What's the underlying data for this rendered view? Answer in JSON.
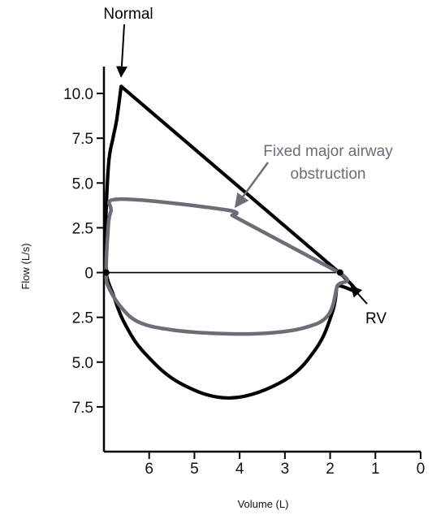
{
  "chart_data": {
    "type": "line",
    "xlabel": "Volume (L)",
    "ylabel": "Flow (L/s)",
    "xlim": [
      7.0,
      0.0
    ],
    "ylim": [
      -10.0,
      11.5
    ],
    "x_reversed": true,
    "x_ticks": [
      6,
      5,
      4,
      3,
      2,
      1,
      0
    ],
    "x_tick_labels": [
      "6",
      "5",
      "4",
      "3",
      "2",
      "1",
      "0"
    ],
    "y_ticks": [
      10.0,
      7.5,
      5.0,
      2.5,
      0,
      -2.5,
      -5.0,
      -7.5
    ],
    "y_tick_labels": [
      "10.0",
      "7.5",
      "5.0",
      "2.5",
      "0",
      "2.5",
      "5.0",
      "7.5"
    ],
    "colors": {
      "normal": "#000000",
      "fixed": "#6d6d78",
      "baseline": "#000000"
    },
    "series": [
      {
        "key": "normal",
        "x": [
          6.95,
          6.97,
          6.9,
          6.8,
          6.72,
          6.62,
          1.8,
          1.85,
          1.95,
          2.3,
          3.0,
          4.2,
          5.3,
          6.1,
          6.55,
          6.8,
          6.95
        ],
        "y": [
          0.0,
          2.0,
          6.0,
          7.5,
          8.5,
          10.4,
          0.0,
          -0.8,
          -2.2,
          -4.2,
          -6.0,
          -7.0,
          -6.2,
          -4.5,
          -2.8,
          -1.2,
          0.0
        ]
      },
      {
        "key": "fixed",
        "x": [
          6.95,
          6.92,
          6.85,
          6.62,
          4.3,
          4.17,
          1.8,
          1.85,
          2.05,
          2.6,
          3.5,
          4.5,
          5.5,
          6.2,
          6.6,
          6.9,
          6.95
        ],
        "y": [
          0.0,
          2.0,
          3.4,
          4.1,
          3.5,
          3.2,
          0.0,
          -0.8,
          -2.4,
          -3.1,
          -3.4,
          -3.4,
          -3.2,
          -2.8,
          -2.0,
          -0.8,
          0.0
        ]
      }
    ],
    "baseline": {
      "x": [
        6.95,
        1.75
      ],
      "y": [
        0,
        0
      ]
    },
    "dots": [
      {
        "x": 6.95,
        "y": 0
      },
      {
        "x": 1.78,
        "y": 0
      }
    ],
    "annotations": [
      {
        "key": "normal",
        "text": "Normal",
        "target": {
          "x": 6.62,
          "y": 10.4
        }
      },
      {
        "key": "fixed",
        "text": [
          "Fixed major airway",
          "obstruction"
        ],
        "target": {
          "x": 4.2,
          "y": 3.4
        }
      },
      {
        "key": "rv",
        "text": "RV",
        "target": {
          "x": 1.75,
          "y": -0.4
        }
      }
    ]
  }
}
